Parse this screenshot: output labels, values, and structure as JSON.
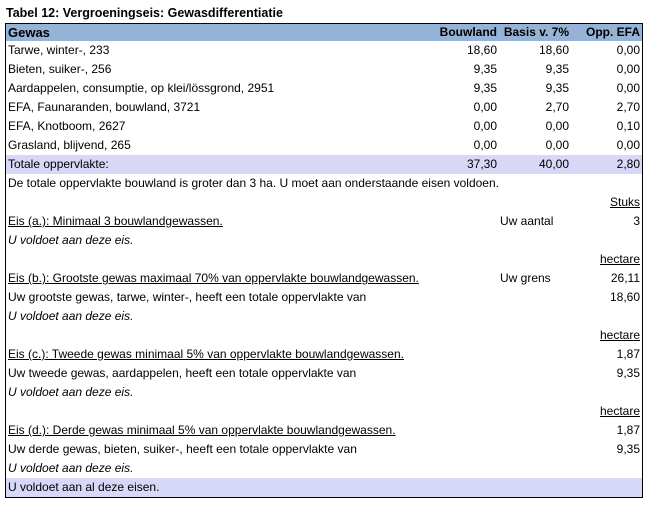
{
  "title": "Tabel 12: Vergroeningseis: Gewasdifferentiatie",
  "colors": {
    "header": "#95B3D7",
    "total": "#D7D7F7"
  },
  "header": {
    "gewas": "Gewas",
    "bouwland": "Bouwland",
    "basis": "Basis v. 7%",
    "efa": "Opp. EFA"
  },
  "rows": [
    {
      "gewas": "Tarwe, winter-,     233",
      "bouwland": "18,60",
      "basis": "18,60",
      "efa": "0,00"
    },
    {
      "gewas": "Bieten, suiker-,     256",
      "bouwland": "9,35",
      "basis": "9,35",
      "efa": "0,00"
    },
    {
      "gewas": "Aardappelen, consumptie, op klei/lössgrond,     2951",
      "bouwland": "9,35",
      "basis": "9,35",
      "efa": "0,00"
    },
    {
      "gewas": "EFA, Faunaranden, bouwland,     3721",
      "bouwland": "0,00",
      "basis": "2,70",
      "efa": "2,70"
    },
    {
      "gewas": "EFA, Knotboom,     2627",
      "bouwland": "0,00",
      "basis": "0,00",
      "efa": "0,10"
    },
    {
      "gewas": "Grasland, blijvend,     265",
      "bouwland": "0,00",
      "basis": "0,00",
      "efa": "0,00"
    }
  ],
  "total": {
    "label": "Totale oppervlakte:",
    "bouwland": "37,30",
    "basis": "40,00",
    "efa": "2,80"
  },
  "intro": "De totale oppervlakte bouwland is groter dan 3 ha. U moet aan onderstaande eisen voldoen.",
  "eis_a": {
    "unit": "Stuks",
    "label": "Eis (a.): Minimaal 3 bouwlandgewassen.",
    "mid": "Uw aantal",
    "value": "3",
    "result": "U voldoet aan deze eis."
  },
  "eis_b": {
    "unit": "hectare",
    "label": "Eis (b.): Grootste gewas maximaal 70% van oppervlakte bouwlandgewassen.",
    "mid": "Uw grens",
    "value": "26,11",
    "detail": "Uw grootste gewas, tarwe, winter-, heeft een totale oppervlakte van",
    "detail_value": "18,60",
    "result": "U voldoet aan deze eis."
  },
  "eis_c": {
    "unit": "hectare",
    "label": "Eis (c.): Tweede gewas minimaal 5% van oppervlakte bouwlandgewassen.",
    "value": "1,87",
    "detail": "Uw tweede gewas, aardappelen, heeft een totale oppervlakte van",
    "detail_value": "9,35",
    "result": "U voldoet aan deze eis."
  },
  "eis_d": {
    "unit": "hectare",
    "label": "Eis (d.): Derde gewas minimaal 5% van oppervlakte bouwlandgewassen.",
    "value": "1,87",
    "detail": "Uw derde gewas, bieten, suiker-, heeft een totale oppervlakte van",
    "detail_value": "9,35",
    "result": "U voldoet aan deze eis."
  },
  "final": "U voldoet aan al deze eisen."
}
